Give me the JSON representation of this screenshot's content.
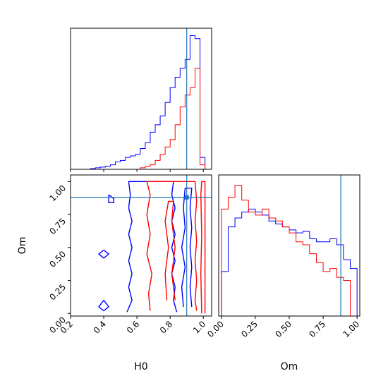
{
  "chart_data": [
    {
      "type": "step",
      "panel": "H0 marginal",
      "series": [
        {
          "color": "#0000ff",
          "bin_edges": [
            0.2,
            0.23,
            0.26,
            0.29,
            0.32,
            0.35,
            0.38,
            0.41,
            0.44,
            0.47,
            0.5,
            0.53,
            0.56,
            0.59,
            0.62,
            0.65,
            0.68,
            0.71,
            0.74,
            0.77,
            0.8,
            0.83,
            0.86,
            0.89,
            0.92,
            0.95,
            0.98,
            1.01
          ],
          "counts": [
            0,
            0,
            0,
            0,
            0.005,
            0.01,
            0.015,
            0.02,
            0.03,
            0.05,
            0.06,
            0.08,
            0.09,
            0.1,
            0.14,
            0.18,
            0.25,
            0.3,
            0.36,
            0.45,
            0.55,
            0.62,
            0.68,
            0.74,
            0.9,
            0.88,
            0.08
          ]
        },
        {
          "color": "#ff0000",
          "bin_edges": [
            0.2,
            0.23,
            0.26,
            0.29,
            0.32,
            0.35,
            0.38,
            0.41,
            0.44,
            0.47,
            0.5,
            0.53,
            0.56,
            0.59,
            0.62,
            0.65,
            0.68,
            0.71,
            0.74,
            0.77,
            0.8,
            0.83,
            0.86,
            0.89,
            0.92,
            0.95,
            0.98,
            1.01
          ],
          "counts": [
            0,
            0,
            0,
            0,
            0,
            0,
            0,
            0,
            0,
            0,
            0,
            0,
            0,
            0,
            0.01,
            0.02,
            0.03,
            0.06,
            0.1,
            0.15,
            0.2,
            0.3,
            0.42,
            0.5,
            0.55,
            0.68,
            0.03
          ]
        }
      ],
      "truth_line": 0.9
    },
    {
      "type": "contour",
      "panel": "H0 vs Om joint",
      "xlabel": "H0",
      "ylabel": "Om",
      "xlim": [
        0.2,
        1.05
      ],
      "ylim": [
        -0.02,
        1.05
      ],
      "xticks": [
        "0.2",
        "0.4",
        "0.6",
        "0.8",
        "1.0"
      ],
      "yticks": [
        "0.00",
        "0.25",
        "0.50",
        "0.75",
        "1.00"
      ],
      "truth": {
        "H0": 0.9,
        "Om": 0.88
      },
      "blue_contours": [
        [
          [
            0.54,
            0.01
          ],
          [
            0.57,
            0.1
          ],
          [
            0.55,
            0.2
          ],
          [
            0.57,
            0.3
          ],
          [
            0.55,
            0.4
          ],
          [
            0.57,
            0.5
          ],
          [
            0.55,
            0.6
          ],
          [
            0.57,
            0.7
          ],
          [
            0.55,
            0.8
          ],
          [
            0.56,
            0.9
          ],
          [
            0.55,
            1.0
          ],
          [
            0.82,
            1.0
          ],
          [
            0.81,
            0.9
          ],
          [
            0.83,
            0.8
          ],
          [
            0.81,
            0.7
          ],
          [
            0.83,
            0.6
          ],
          [
            0.81,
            0.5
          ],
          [
            0.83,
            0.4
          ],
          [
            0.81,
            0.3
          ],
          [
            0.83,
            0.2
          ],
          [
            0.82,
            0.1
          ],
          [
            0.84,
            0.01
          ]
        ],
        [
          [
            0.88,
            0.05
          ],
          [
            0.87,
            0.2
          ],
          [
            0.89,
            0.35
          ],
          [
            0.87,
            0.5
          ],
          [
            0.89,
            0.65
          ],
          [
            0.88,
            0.8
          ],
          [
            0.89,
            0.95
          ],
          [
            0.93,
            0.95
          ],
          [
            0.92,
            0.8
          ],
          [
            0.93,
            0.65
          ],
          [
            0.92,
            0.5
          ],
          [
            0.93,
            0.35
          ],
          [
            0.92,
            0.2
          ],
          [
            0.93,
            0.05
          ]
        ],
        [
          [
            0.43,
            0.9
          ],
          [
            0.46,
            0.87
          ],
          [
            0.46,
            0.84
          ],
          [
            0.43,
            0.84
          ],
          [
            0.43,
            0.9
          ]
        ],
        [
          [
            0.4,
            0.48
          ],
          [
            0.43,
            0.45
          ],
          [
            0.4,
            0.42
          ],
          [
            0.37,
            0.45
          ],
          [
            0.4,
            0.48
          ]
        ],
        [
          [
            0.4,
            0.1
          ],
          [
            0.43,
            0.05
          ],
          [
            0.4,
            0.02
          ],
          [
            0.37,
            0.05
          ],
          [
            0.4,
            0.1
          ]
        ]
      ],
      "red_contours": [
        [
          [
            0.68,
            0.02
          ],
          [
            0.67,
            0.15
          ],
          [
            0.69,
            0.3
          ],
          [
            0.66,
            0.45
          ],
          [
            0.68,
            0.6
          ],
          [
            0.66,
            0.75
          ],
          [
            0.68,
            0.9
          ],
          [
            0.66,
            1.0
          ],
          [
            0.95,
            1.0
          ],
          [
            0.96,
            0.85
          ],
          [
            0.95,
            0.7
          ],
          [
            0.96,
            0.55
          ],
          [
            0.95,
            0.4
          ],
          [
            0.96,
            0.25
          ],
          [
            0.95,
            0.1
          ],
          [
            0.96,
            0.02
          ]
        ],
        [
          [
            0.78,
            0.1
          ],
          [
            0.77,
            0.3
          ],
          [
            0.79,
            0.5
          ],
          [
            0.77,
            0.7
          ],
          [
            0.79,
            0.85
          ],
          [
            0.82,
            0.85
          ],
          [
            0.81,
            0.7
          ],
          [
            0.83,
            0.5
          ],
          [
            0.81,
            0.3
          ],
          [
            0.83,
            0.1
          ]
        ],
        [
          [
            0.99,
            0.0
          ],
          [
            0.985,
            0.3
          ],
          [
            0.99,
            0.6
          ],
          [
            0.985,
            0.9
          ],
          [
            0.99,
            1.0
          ],
          [
            1.01,
            1.0
          ],
          [
            1.01,
            0.0
          ]
        ]
      ]
    },
    {
      "type": "step",
      "panel": "Om marginal",
      "series": [
        {
          "color": "#0000ff",
          "bin_edges": [
            0.0,
            0.05,
            0.1,
            0.15,
            0.2,
            0.25,
            0.3,
            0.35,
            0.4,
            0.45,
            0.5,
            0.55,
            0.6,
            0.65,
            0.7,
            0.75,
            0.8,
            0.85,
            0.9,
            0.95,
            1.0
          ],
          "counts": [
            0.3,
            0.6,
            0.66,
            0.7,
            0.72,
            0.7,
            0.68,
            0.64,
            0.62,
            0.6,
            0.58,
            0.56,
            0.57,
            0.52,
            0.5,
            0.5,
            0.52,
            0.48,
            0.38,
            0.32
          ]
        },
        {
          "color": "#ff0000",
          "bin_edges": [
            0.0,
            0.05,
            0.1,
            0.15,
            0.2,
            0.25,
            0.3,
            0.35,
            0.4,
            0.45,
            0.5,
            0.55,
            0.6,
            0.65,
            0.7,
            0.75,
            0.8,
            0.85,
            0.9,
            0.95,
            1.0
          ],
          "counts": [
            0.72,
            0.8,
            0.88,
            0.78,
            0.7,
            0.68,
            0.72,
            0.66,
            0.64,
            0.6,
            0.56,
            0.5,
            0.48,
            0.42,
            0.36,
            0.3,
            0.32,
            0.26,
            0.24,
            0.0
          ]
        }
      ],
      "xlabel": "Om",
      "xlim": [
        0.0,
        1.02
      ],
      "xticks": [
        "0.00",
        "0.25",
        "0.50",
        "0.75",
        "1.00"
      ],
      "truth_line": 0.88
    }
  ],
  "colors": {
    "blue": "#0000ff",
    "red": "#ff0000",
    "truth": "#1f77b4"
  }
}
